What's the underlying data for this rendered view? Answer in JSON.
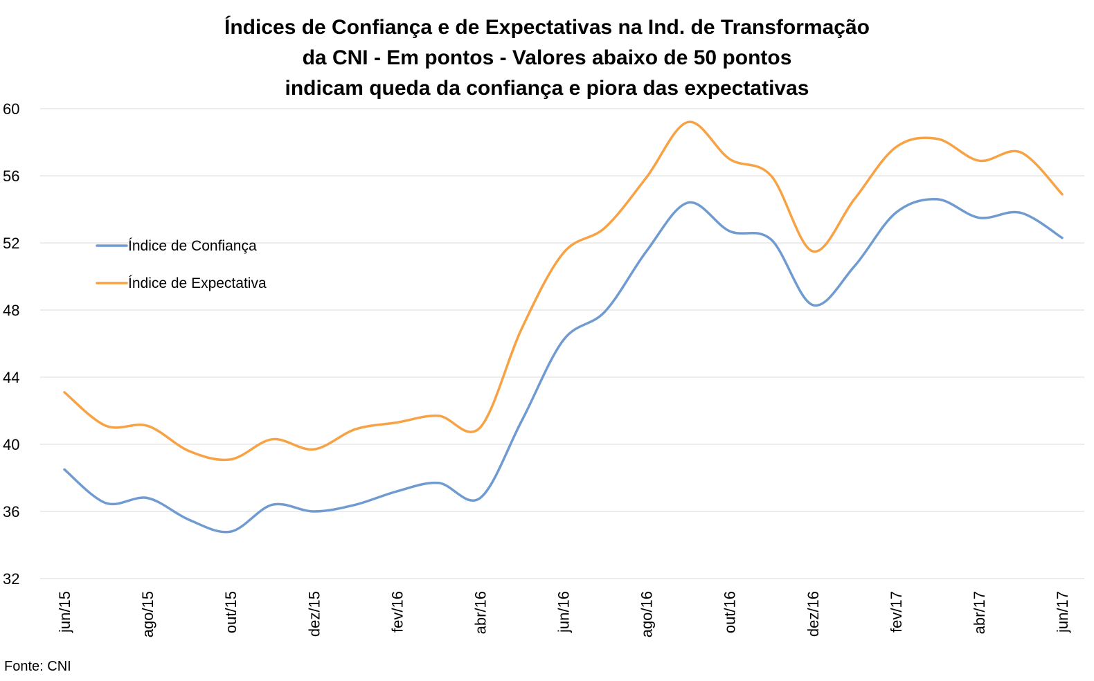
{
  "chart_data": {
    "type": "line",
    "title_lines": [
      "Índices de Confiança e de Expectativas na Ind. de Transformação",
      "da CNI - Em pontos - Valores abaixo de 50 pontos",
      "indicam queda da confiança e piora das expectativas"
    ],
    "xlabel": "",
    "ylabel": "",
    "ylim": [
      32,
      60
    ],
    "yticks": [
      32,
      36,
      40,
      44,
      48,
      52,
      56,
      60
    ],
    "grid": true,
    "legend_position": "left-middle",
    "x": [
      "jun/15",
      "jul/15",
      "ago/15",
      "set/15",
      "out/15",
      "nov/15",
      "dez/15",
      "jan/16",
      "fev/16",
      "mar/16",
      "abr/16",
      "mai/16",
      "jun/16",
      "jul/16",
      "ago/16",
      "set/16",
      "out/16",
      "nov/16",
      "dez/16",
      "jan/17",
      "fev/17",
      "mar/17",
      "abr/17",
      "mai/17",
      "jun/17"
    ],
    "x_tick_labels": [
      "jun/15",
      "ago/15",
      "out/15",
      "dez/15",
      "fev/16",
      "abr/16",
      "jun/16",
      "ago/16",
      "out/16",
      "dez/16",
      "fev/17",
      "abr/17",
      "jun/17"
    ],
    "series": [
      {
        "name": "Índice de Confiança",
        "color": "#6F9BD1",
        "values": [
          38.5,
          36.5,
          36.8,
          35.5,
          34.8,
          36.4,
          36.0,
          36.4,
          37.2,
          37.7,
          36.8,
          41.4,
          46.2,
          47.9,
          51.5,
          54.4,
          52.7,
          52.2,
          48.3,
          50.6,
          53.8,
          54.6,
          53.5,
          53.8,
          52.3
        ]
      },
      {
        "name": "Índice de Expectativa",
        "color": "#F7A244",
        "values": [
          43.1,
          41.1,
          41.1,
          39.6,
          39.1,
          40.3,
          39.7,
          40.9,
          41.3,
          41.7,
          41.0,
          46.9,
          51.4,
          52.9,
          55.9,
          59.2,
          57.0,
          56.0,
          51.5,
          54.6,
          57.7,
          58.2,
          56.9,
          57.4,
          54.9
        ]
      }
    ]
  },
  "source_note": "Fonte: CNI"
}
